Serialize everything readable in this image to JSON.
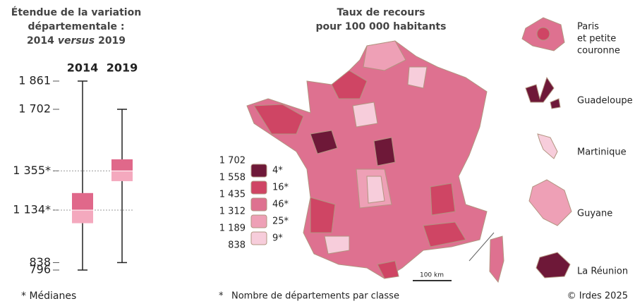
{
  "chart_data": {
    "type": "box",
    "title": [
      "Étendue de la variation",
      "départementale :"
    ],
    "subtitle": [
      "2014",
      "versus",
      "2019"
    ],
    "ylim": [
      796,
      1861
    ],
    "yticks": [
      {
        "value": 1861,
        "label": "1 861"
      },
      {
        "value": 1702,
        "label": "1 702"
      },
      {
        "value": 1355,
        "label": "1 355*"
      },
      {
        "value": 1134,
        "label": "1 134*"
      },
      838,
      796
    ],
    "series": [
      {
        "name": "2014",
        "color": "#e0688a",
        "light": "#f4a9be",
        "min": 796,
        "q1": 1060,
        "median": 1134,
        "q3": 1230,
        "max": 1861
      },
      {
        "name": "2019",
        "color": "#e0688a",
        "light": "#f4a9be",
        "min": 838,
        "q1": 1297,
        "median": 1355,
        "q3": 1420,
        "max": 1702
      }
    ],
    "footnote": "* Médianes"
  },
  "map": {
    "title": [
      "Taux de recours",
      "pour 100 000 habitants"
    ],
    "legend": {
      "breaks": [
        {
          "value": 1702,
          "label": "1 702"
        },
        {
          "value": 1558,
          "label": "1 558"
        },
        {
          "value": 1435,
          "label": "1 435"
        },
        {
          "value": 1312,
          "label": "1 312"
        },
        {
          "value": 1189,
          "label": "1 189"
        },
        838
      ],
      "colors": [
        "#6e1838",
        "#cf4564",
        "#de7190",
        "#eea0b6",
        "#f7cddb"
      ],
      "counts": [
        4,
        16,
        46,
        25,
        9
      ],
      "value_labels": [
        "4*",
        "16*",
        "46*",
        "25*",
        "9*"
      ]
    },
    "paris_label": [
      "Paris",
      "et petite",
      "couronne"
    ],
    "territories": [
      "Guadeloupe",
      "Martinique",
      "Guyane",
      "La Réunion"
    ],
    "scale": "100 km",
    "footnote_mark": "*",
    "footnote": "Nombre de départements par classe",
    "credit": "© Irdes 2025"
  }
}
